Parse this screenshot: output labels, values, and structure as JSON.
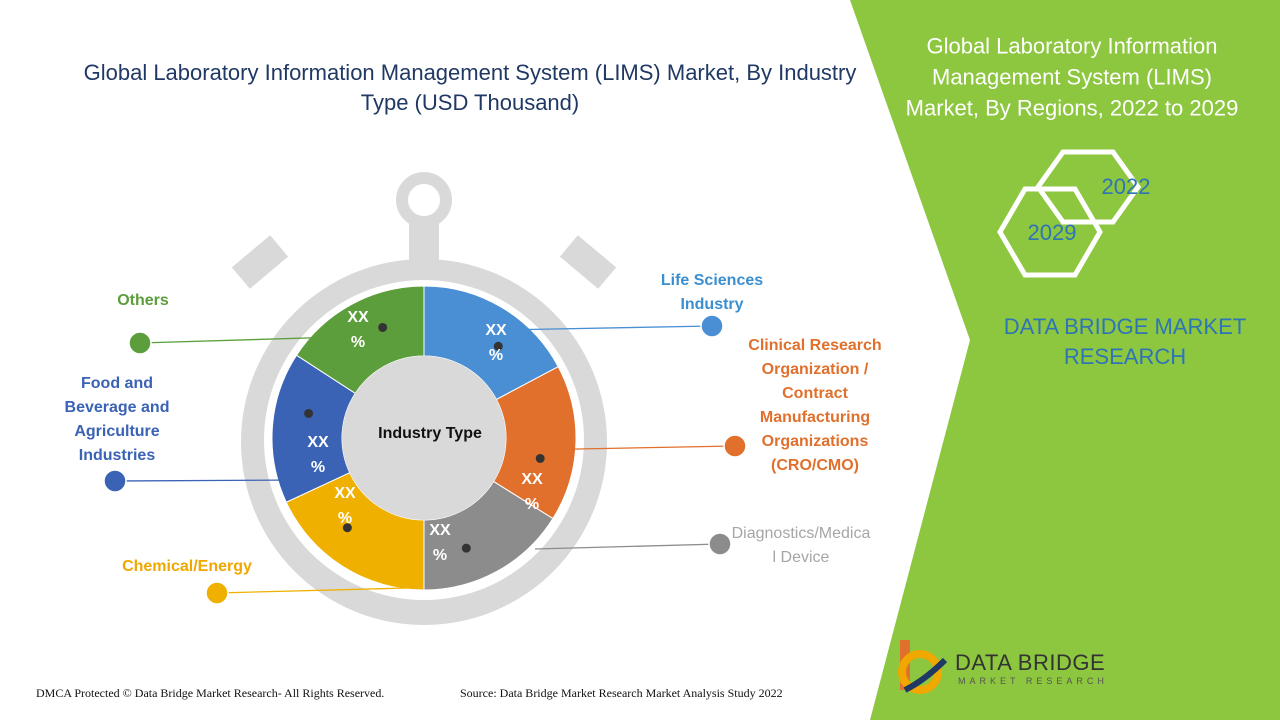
{
  "title": "Global Laboratory Information Management System (LIMS) Market, By Industry Type (USD Thousand)",
  "center_label": "Industry Type",
  "segments": [
    {
      "name": "Life Sciences Industry",
      "value_text": "XX %",
      "color": "#4a8fd4",
      "label_color": "#3a8fd0"
    },
    {
      "name": "Clinical Research Organization / Contract Manufacturing Organizations (CRO/CMO)",
      "value_text": "XX %",
      "color": "#e0702c",
      "label_color": "#e0702c"
    },
    {
      "name": "Diagnostics/Medical Device",
      "value_text": "XX %",
      "color": "#8c8c8c",
      "label_color": "#a6a6a6"
    },
    {
      "name": "Chemical/Energy",
      "value_text": "XX %",
      "color": "#f0b000",
      "label_color": "#f0a800"
    },
    {
      "name": "Food and Beverage and Agriculture Industries",
      "value_text": "XX %",
      "color": "#3a62b5",
      "label_color": "#3a62b5"
    },
    {
      "name": "Others",
      "value_text": "XX %",
      "color": "#5c9e3c",
      "label_color": "#5c9e3c"
    }
  ],
  "side_panel": {
    "title": "Global Laboratory Information Management System (LIMS) Market,  By Regions, 2022 to 2029",
    "hexagons": [
      "2022",
      "2029"
    ],
    "brand": "DATA BRIDGE MARKET RESEARCH"
  },
  "logo": {
    "name": "DATA BRIDGE",
    "tagline": "MARKET RESEARCH"
  },
  "footer": {
    "left": "DMCA Protected © Data Bridge Market Research- All Rights Reserved.",
    "right": "Source: Data Bridge Market Research Market Analysis Study 2022"
  }
}
